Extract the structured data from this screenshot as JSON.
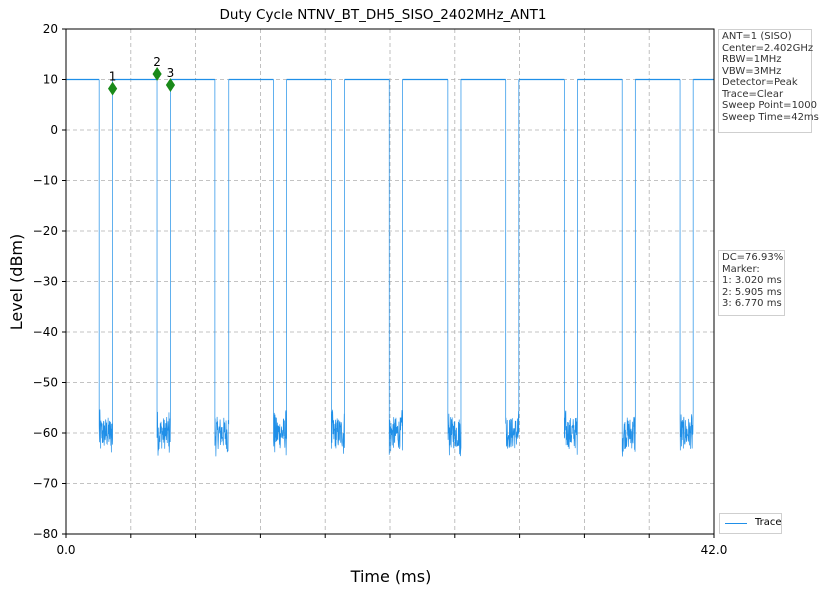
{
  "chart_data": {
    "type": "line",
    "title": "Duty Cycle NTNV_BT_DH5_SISO_2402MHz_ANT1",
    "xlabel": "Time (ms)",
    "ylabel": "Level (dBm)",
    "xlim": [
      0.0,
      42.0
    ],
    "ylim": [
      -80,
      20
    ],
    "x_tick_labels": [
      "0.0",
      "42.0"
    ],
    "x_minor_ticks": [
      4.2,
      8.4,
      12.6,
      16.8,
      21.0,
      25.2,
      29.4,
      33.6,
      37.8
    ],
    "y_ticks": [
      20,
      10,
      0,
      -10,
      -20,
      -30,
      -40,
      -50,
      -60,
      -70,
      -80
    ],
    "y_tick_labels": [
      "20",
      "10",
      "0",
      "−10",
      "−20",
      "−30",
      "−40",
      "−50",
      "−60",
      "−70",
      "−80"
    ],
    "grid": true,
    "series": [
      {
        "name": "Trace",
        "color": "#1f8fe8",
        "on_level": 10,
        "off_level": -60,
        "off_intervals": [
          [
            2.15,
            3.02
          ],
          [
            5.9,
            6.77
          ],
          [
            9.65,
            10.55
          ],
          [
            13.45,
            14.3
          ],
          [
            17.2,
            18.05
          ],
          [
            20.95,
            21.82
          ],
          [
            24.75,
            25.6
          ],
          [
            28.5,
            29.35
          ],
          [
            32.3,
            33.15
          ],
          [
            36.05,
            36.9
          ],
          [
            39.8,
            40.65
          ]
        ]
      }
    ],
    "markers": [
      {
        "label": "1",
        "x": 3.02,
        "y": 8.2
      },
      {
        "label": "2",
        "x": 5.905,
        "y": 11.1
      },
      {
        "label": "3",
        "x": 6.77,
        "y": 8.9
      }
    ],
    "marker_color": "#1a8a1a",
    "legend_placement": "bottom-right outside",
    "info_lines": [
      "ANT=1 (SISO)",
      "Center=2.402GHz",
      "RBW=1MHz",
      "VBW=3MHz",
      "Detector=Peak",
      "Trace=Clear",
      "Sweep Point=1000",
      "Sweep Time=42ms"
    ],
    "result_lines": [
      "DC=76.93%",
      "Marker:",
      "1: 3.020 ms",
      "2: 5.905 ms",
      "3: 6.770 ms"
    ]
  }
}
